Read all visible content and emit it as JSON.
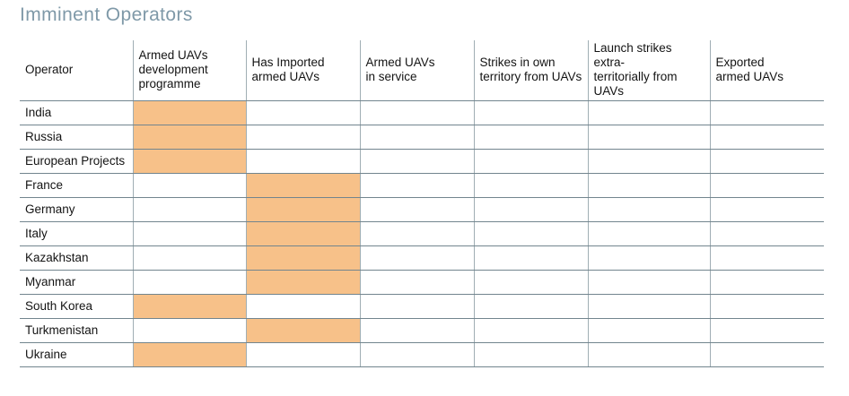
{
  "title": "Imminent Operators",
  "colors": {
    "highlight": "#F7C189",
    "grid_horizontal": "#72858E",
    "grid_vertical": "#A0AEB4",
    "title": "#7F99A8",
    "text": "#141414"
  },
  "table": {
    "columns": [
      "Operator",
      "Armed UAVs\ndevelopment\nprogramme",
      "Has Imported\narmed UAVs",
      "Armed UAVs\nin service",
      "Strikes in own\nterritory from UAVs",
      "Launch strikes extra-\nterritorially from UAVs",
      "Exported\narmed UAVs"
    ],
    "rows": [
      {
        "operator": "India",
        "cells": [
          1,
          0,
          0,
          0,
          0,
          0
        ]
      },
      {
        "operator": "Russia",
        "cells": [
          1,
          0,
          0,
          0,
          0,
          0
        ]
      },
      {
        "operator": "European Projects",
        "cells": [
          1,
          0,
          0,
          0,
          0,
          0
        ]
      },
      {
        "operator": "France",
        "cells": [
          0,
          1,
          0,
          0,
          0,
          0
        ]
      },
      {
        "operator": "Germany",
        "cells": [
          0,
          1,
          0,
          0,
          0,
          0
        ]
      },
      {
        "operator": "Italy",
        "cells": [
          0,
          1,
          0,
          0,
          0,
          0
        ]
      },
      {
        "operator": "Kazakhstan",
        "cells": [
          0,
          1,
          0,
          0,
          0,
          0
        ]
      },
      {
        "operator": "Myanmar",
        "cells": [
          0,
          1,
          0,
          0,
          0,
          0
        ]
      },
      {
        "operator": "South Korea",
        "cells": [
          1,
          0,
          0,
          0,
          0,
          0
        ]
      },
      {
        "operator": "Turkmenistan",
        "cells": [
          0,
          1,
          0,
          0,
          0,
          0
        ]
      },
      {
        "operator": "Ukraine",
        "cells": [
          1,
          0,
          0,
          0,
          0,
          0
        ]
      }
    ]
  },
  "chart_data": {
    "type": "table",
    "title": "Imminent Operators",
    "row_header": "Operator",
    "columns": [
      "Armed UAVs development programme",
      "Has Imported armed UAVs",
      "Armed UAVs in service",
      "Strikes in own territory from UAVs",
      "Launch strikes extra-territorially from UAVs",
      "Exported armed UAVs"
    ],
    "rows": [
      "India",
      "Russia",
      "European Projects",
      "France",
      "Germany",
      "Italy",
      "Kazakhstan",
      "Myanmar",
      "South Korea",
      "Turkmenistan",
      "Ukraine"
    ],
    "matrix": [
      [
        1,
        0,
        0,
        0,
        0,
        0
      ],
      [
        1,
        0,
        0,
        0,
        0,
        0
      ],
      [
        1,
        0,
        0,
        0,
        0,
        0
      ],
      [
        0,
        1,
        0,
        0,
        0,
        0
      ],
      [
        0,
        1,
        0,
        0,
        0,
        0
      ],
      [
        0,
        1,
        0,
        0,
        0,
        0
      ],
      [
        0,
        1,
        0,
        0,
        0,
        0
      ],
      [
        0,
        1,
        0,
        0,
        0,
        0
      ],
      [
        1,
        0,
        0,
        0,
        0,
        0
      ],
      [
        0,
        1,
        0,
        0,
        0,
        0
      ],
      [
        1,
        0,
        0,
        0,
        0,
        0
      ]
    ],
    "highlight_color": "#F7C189",
    "highlighted_cells": {
      "India": "Armed UAVs development programme",
      "Russia": "Armed UAVs development programme",
      "European Projects": "Armed UAVs development programme",
      "France": "Has Imported armed UAVs",
      "Germany": "Has Imported armed UAVs",
      "Italy": "Has Imported armed UAVs",
      "Kazakhstan": "Has Imported armed UAVs",
      "Myanmar": "Has Imported armed UAVs",
      "South Korea": "Armed UAVs development programme",
      "Turkmenistan": "Has Imported armed UAVs",
      "Ukraine": "Armed UAVs development programme"
    }
  }
}
